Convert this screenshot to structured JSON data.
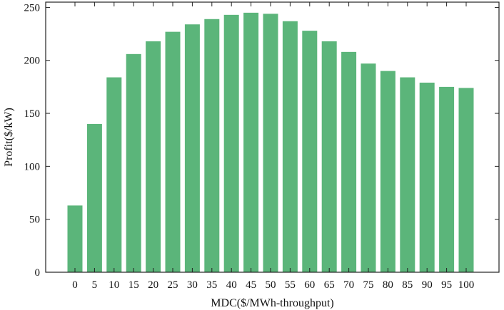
{
  "chart_data": {
    "type": "bar",
    "categories": [
      "0",
      "5",
      "10",
      "15",
      "20",
      "25",
      "30",
      "35",
      "40",
      "45",
      "50",
      "55",
      "60",
      "65",
      "70",
      "75",
      "80",
      "85",
      "90",
      "95",
      "100"
    ],
    "values": [
      63,
      140,
      184,
      206,
      218,
      227,
      234,
      239,
      243,
      245,
      244,
      237,
      228,
      218,
      208,
      197,
      190,
      184,
      179,
      175,
      174
    ],
    "xlabel": "MDC($/MWh-throughput)",
    "ylabel": "Profit($/kW)",
    "ylim": [
      0,
      255
    ],
    "yticks": [
      0,
      50,
      100,
      150,
      200,
      250
    ],
    "grid": false,
    "colors": {
      "bar": "#5bb57a",
      "axis": "#222222"
    }
  }
}
